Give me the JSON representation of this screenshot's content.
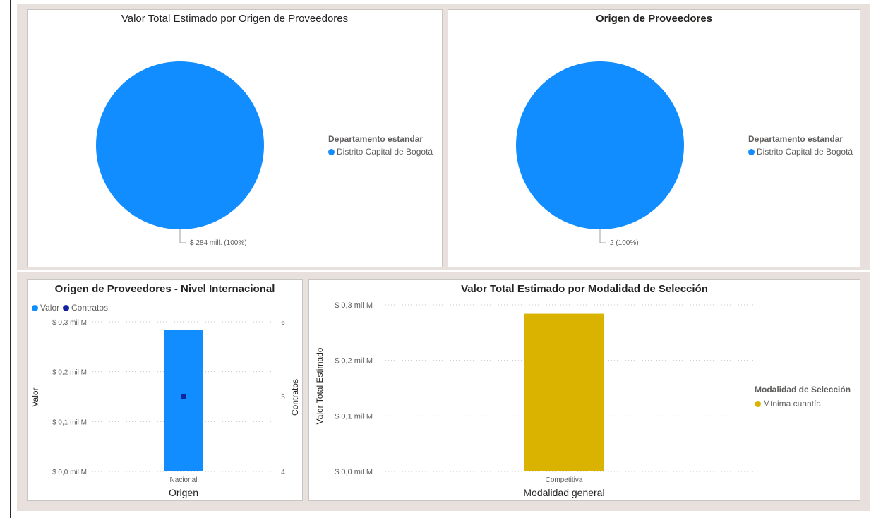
{
  "colors": {
    "canvas": "#e8e0dc",
    "blue": "#118dff",
    "navy": "#12239e",
    "gold": "#d9b300",
    "text": "#252423",
    "subtext": "#605e5c",
    "grid": "#c8c6c4"
  },
  "charts": {
    "pie_valor": {
      "title": "Valor Total Estimado por Origen de Proveedores",
      "legend_title": "Departamento estandar",
      "legend_items": [
        "Distrito Capital de Bogotá"
      ],
      "data_label": "$ 284 mill. (100%)"
    },
    "pie_origen": {
      "title": "Origen de Proveedores",
      "legend_title": "Departamento estandar",
      "legend_items": [
        "Distrito Capital de Bogotá"
      ],
      "data_label": "2 (100%)"
    },
    "combo": {
      "title": "Origen de Proveedores - Nivel Internacional",
      "legend": [
        "Valor",
        "Contratos"
      ],
      "ylabel_left": "Valor",
      "ylabel_right": "Contratos",
      "xlabel": "Origen",
      "left_ticks": [
        "$ 0,0 mil M",
        "$ 0,1 mil M",
        "$ 0,2 mil M",
        "$ 0,3 mil M"
      ],
      "right_ticks": [
        "4",
        "5",
        "6"
      ]
    },
    "bar_modalidad": {
      "title": "Valor Total Estimado por Modalidad de Selección",
      "ylabel": "Valor Total Estimado",
      "xlabel": "Modalidad general",
      "legend_title": "Modalidad de Selección",
      "legend_items": [
        "Mínima cuantía"
      ],
      "ticks": [
        "$ 0,0 mil M",
        "$ 0,1 mil M",
        "$ 0,2 mil M",
        "$ 0,3 mil M"
      ]
    }
  },
  "chart_data": [
    {
      "type": "pie",
      "title": "Valor Total Estimado por Origen de Proveedores",
      "legend_title": "Departamento estandar",
      "slices": [
        {
          "label": "Distrito Capital de Bogotá",
          "value": 284,
          "percent": 100
        }
      ],
      "unit": "$ mill."
    },
    {
      "type": "pie",
      "title": "Origen de Proveedores",
      "legend_title": "Departamento estandar",
      "slices": [
        {
          "label": "Distrito Capital de Bogotá",
          "value": 2,
          "percent": 100
        }
      ]
    },
    {
      "type": "bar",
      "title": "Origen de Proveedores - Nivel Internacional",
      "categories": [
        "Nacional"
      ],
      "series": [
        {
          "name": "Valor",
          "type": "bar",
          "axis": "left",
          "values": [
            0.284
          ]
        },
        {
          "name": "Contratos",
          "type": "line",
          "axis": "right",
          "values": [
            5
          ]
        }
      ],
      "xlabel": "Origen",
      "ylabel": "Valor",
      "y2label": "Contratos",
      "ylim": [
        0,
        0.3
      ],
      "y2lim": [
        4,
        6
      ],
      "unit": "mil M"
    },
    {
      "type": "bar",
      "title": "Valor Total Estimado por Modalidad de Selección",
      "categories": [
        "Competitiva"
      ],
      "series": [
        {
          "name": "Mínima cuantía",
          "values": [
            0.284
          ]
        }
      ],
      "xlabel": "Modalidad general",
      "ylabel": "Valor Total Estimado",
      "ylim": [
        0,
        0.3
      ],
      "legend_title": "Modalidad de Selección",
      "unit": "mil M"
    }
  ]
}
